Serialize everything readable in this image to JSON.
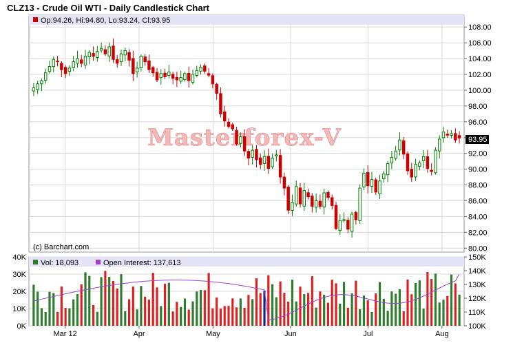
{
  "title": "CLZ13 - Crude Oil WTI - Daily Candlestick Chart",
  "price_legend": "Op:94.26, Hi:94.80, Lo:93.24, Cl:93.95",
  "volume_legend": "Vol: 18,093",
  "oi_legend": "Open Interest: 137,613",
  "credit": "(c) Barchart.com",
  "watermark": "Masterforex-V",
  "last_price_label": "93.95",
  "colors": {
    "up": "#008000",
    "down": "#cc0000",
    "volume_up": "#2e7d2e",
    "volume_down": "#e02020",
    "volume_special": "#1a237e",
    "open_interest": "#a040d0",
    "legend_bg": "#e4e4f6",
    "price_tag_bg": "#000000"
  },
  "chart_data": [
    {
      "type": "candlestick",
      "title": "CLZ13 - Crude Oil WTI - Daily Candlestick Chart",
      "ylim": [
        79.5,
        109.5
      ],
      "y_ticks": [
        "108.00",
        "106.00",
        "104.00",
        "102.00",
        "100.00",
        "98.00",
        "96.00",
        "94.00",
        "92.00",
        "90.00",
        "88.00",
        "86.00",
        "84.00",
        "82.00",
        "80.00"
      ],
      "x_ticks": [
        "Mar 12",
        "Apr",
        "May",
        "Jun",
        "Jul",
        "Aug"
      ],
      "last": {
        "open": 94.26,
        "high": 94.8,
        "low": 93.24,
        "close": 93.95
      },
      "close_path": [
        100.3,
        100.8,
        101.2,
        102.2,
        103.0,
        103.9,
        103.6,
        102.6,
        102.1,
        102.8,
        103.6,
        104.0,
        103.4,
        104.3,
        104.8,
        104.3,
        104.9,
        105.3,
        104.6,
        105.5,
        103.9,
        103.4,
        104.6,
        105.0,
        103.8,
        102.1,
        102.8,
        104.3,
        103.6,
        102.6,
        102.2,
        101.3,
        102.1,
        101.7,
        102.3,
        101.5,
        101.3,
        101.6,
        102.1,
        101.2,
        102.0,
        102.5,
        102.9,
        102.4,
        101.9,
        100.8,
        99.6,
        97.0,
        96.1,
        95.4,
        95.1,
        93.2,
        94.1,
        92.3,
        91.4,
        92.4,
        91.2,
        90.6,
        91.6,
        90.1,
        91.4,
        91.8,
        89.0,
        87.6,
        84.8,
        85.8,
        87.8,
        85.6,
        87.3,
        86.5,
        85.3,
        86.0,
        85.3,
        87.0,
        86.4,
        85.4,
        82.5,
        83.5,
        83.6,
        82.4,
        84.3,
        83.6,
        87.6,
        89.5,
        87.9,
        88.7,
        87.1,
        88.5,
        89.4,
        90.7,
        91.5,
        92.3,
        93.7,
        91.9,
        89.8,
        89.0,
        90.6,
        90.8,
        91.6,
        90.1,
        89.7,
        92.4,
        93.8,
        94.7,
        94.3,
        94.5,
        93.7,
        93.95
      ]
    },
    {
      "type": "bar",
      "title": "Volume",
      "ylim": [
        0,
        40000
      ],
      "y_ticks": [
        "40K",
        "30K",
        "20K",
        "10K",
        "0K"
      ],
      "last": 18093
    },
    {
      "type": "line",
      "title": "Open Interest",
      "ylim": [
        100000,
        150000
      ],
      "y_ticks": [
        "150K",
        "140K",
        "130K",
        "120K",
        "110K",
        "100K"
      ],
      "last": 137613
    }
  ]
}
